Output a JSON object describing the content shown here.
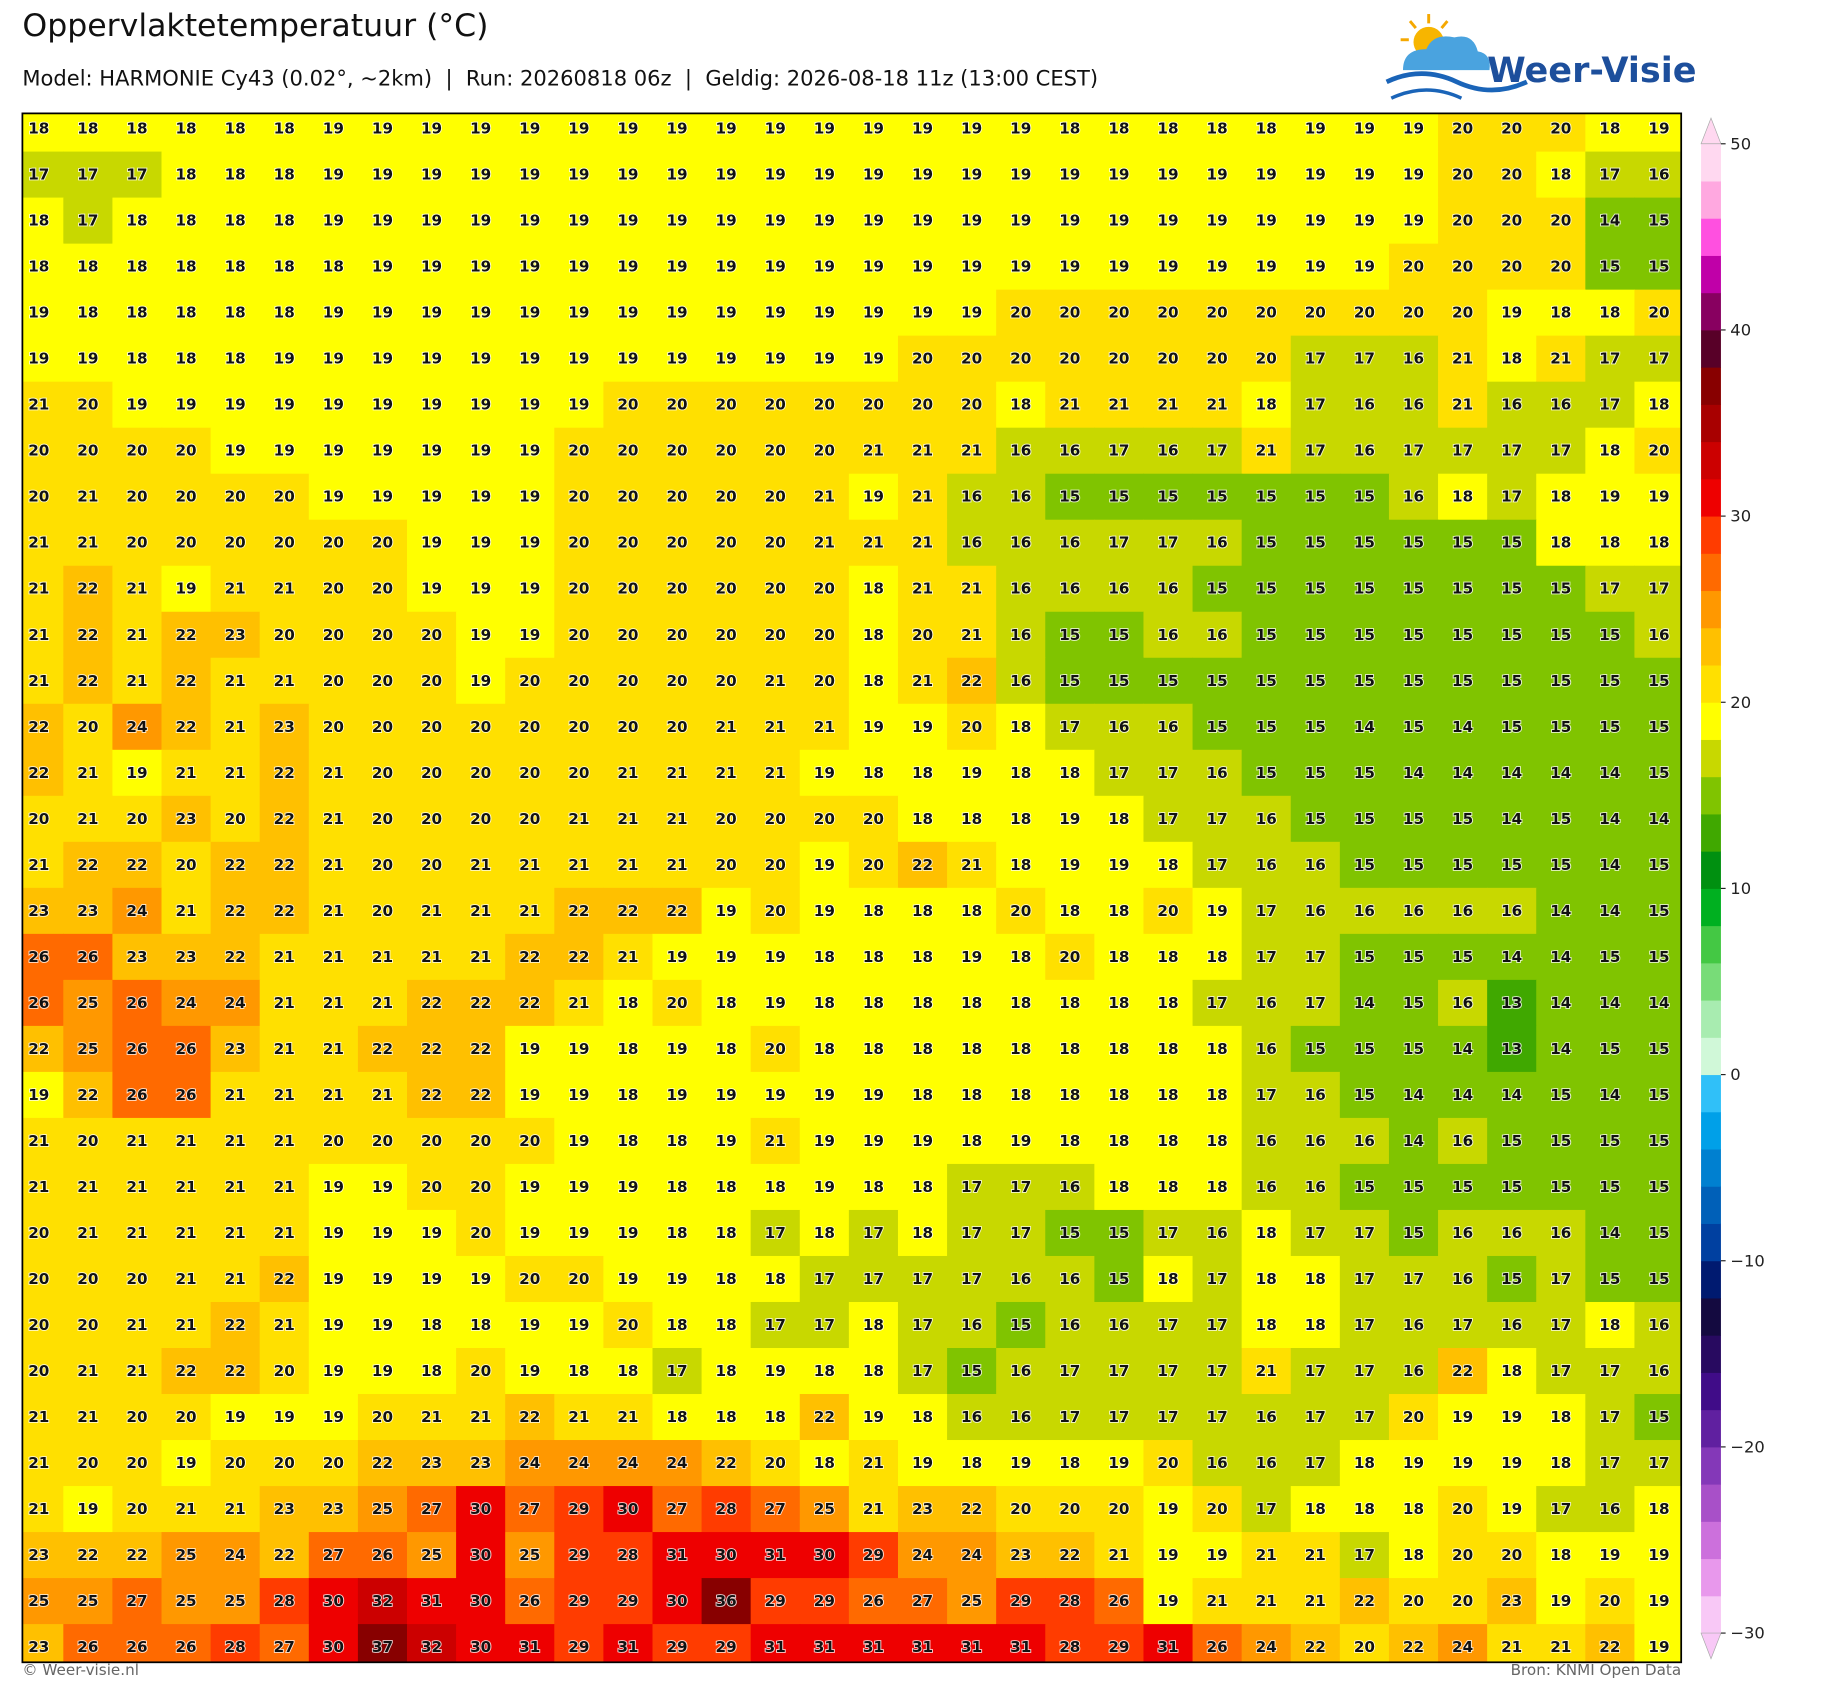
{
  "header": {
    "title": "Oppervlaktetemperatuur (°C)",
    "subtitle": "Model: HARMONIE Cy43 (0.02°, ~2km)  |  Run: 20260818 06z  |  Geldig: 2026-08-18 11z (13:00 CEST)"
  },
  "logo": {
    "text": "Weer-Visie"
  },
  "map": {
    "grid": [
      [
        18,
        18,
        18,
        18,
        18,
        18,
        19,
        19,
        19,
        19,
        19,
        19,
        19,
        19,
        19,
        19,
        19,
        19,
        19,
        19,
        19,
        18,
        18,
        18,
        18,
        18,
        19,
        19,
        19,
        20,
        20,
        20,
        18,
        19
      ],
      [
        17,
        17,
        17,
        18,
        18,
        18,
        19,
        19,
        19,
        19,
        19,
        19,
        19,
        19,
        19,
        19,
        19,
        19,
        19,
        19,
        19,
        19,
        19,
        19,
        19,
        19,
        19,
        19,
        19,
        20,
        20,
        18,
        17,
        16
      ],
      [
        18,
        17,
        18,
        18,
        18,
        18,
        19,
        19,
        19,
        19,
        19,
        19,
        19,
        19,
        19,
        19,
        19,
        19,
        19,
        19,
        19,
        19,
        19,
        19,
        19,
        19,
        19,
        19,
        19,
        20,
        20,
        20,
        14,
        15
      ],
      [
        18,
        18,
        18,
        18,
        18,
        18,
        18,
        19,
        19,
        19,
        19,
        19,
        19,
        19,
        19,
        19,
        19,
        19,
        19,
        19,
        19,
        19,
        19,
        19,
        19,
        19,
        19,
        19,
        20,
        20,
        20,
        20,
        15,
        15
      ],
      [
        19,
        18,
        18,
        18,
        18,
        18,
        19,
        19,
        19,
        19,
        19,
        19,
        19,
        19,
        19,
        19,
        19,
        19,
        19,
        19,
        20,
        20,
        20,
        20,
        20,
        20,
        20,
        20,
        20,
        20,
        19,
        18,
        18,
        20
      ],
      [
        19,
        19,
        18,
        18,
        18,
        19,
        19,
        19,
        19,
        19,
        19,
        19,
        19,
        19,
        19,
        19,
        19,
        19,
        20,
        20,
        20,
        20,
        20,
        20,
        20,
        20,
        17,
        17,
        16,
        21,
        18,
        21,
        17,
        17
      ],
      [
        21,
        20,
        19,
        19,
        19,
        19,
        19,
        19,
        19,
        19,
        19,
        19,
        20,
        20,
        20,
        20,
        20,
        20,
        20,
        20,
        18,
        21,
        21,
        21,
        21,
        18,
        17,
        16,
        16,
        21,
        16,
        16,
        17,
        18
      ],
      [
        20,
        20,
        20,
        20,
        19,
        19,
        19,
        19,
        19,
        19,
        19,
        20,
        20,
        20,
        20,
        20,
        20,
        21,
        21,
        21,
        16,
        16,
        17,
        16,
        17,
        21,
        17,
        16,
        17,
        17,
        17,
        17,
        18,
        20
      ],
      [
        20,
        21,
        20,
        20,
        20,
        20,
        19,
        19,
        19,
        19,
        19,
        20,
        20,
        20,
        20,
        20,
        21,
        19,
        21,
        16,
        16,
        15,
        15,
        15,
        15,
        15,
        15,
        15,
        16,
        18,
        17,
        18,
        19,
        19
      ],
      [
        21,
        21,
        20,
        20,
        20,
        20,
        20,
        20,
        19,
        19,
        19,
        20,
        20,
        20,
        20,
        20,
        21,
        21,
        21,
        16,
        16,
        16,
        17,
        17,
        16,
        15,
        15,
        15,
        15,
        15,
        15,
        18,
        18,
        18
      ],
      [
        21,
        22,
        21,
        19,
        21,
        21,
        20,
        20,
        19,
        19,
        19,
        20,
        20,
        20,
        20,
        20,
        20,
        18,
        21,
        21,
        16,
        16,
        16,
        16,
        15,
        15,
        15,
        15,
        15,
        15,
        15,
        15,
        17,
        17
      ],
      [
        21,
        22,
        21,
        22,
        23,
        20,
        20,
        20,
        20,
        19,
        19,
        20,
        20,
        20,
        20,
        20,
        20,
        18,
        20,
        21,
        16,
        15,
        15,
        16,
        16,
        15,
        15,
        15,
        15,
        15,
        15,
        15,
        15,
        16
      ],
      [
        21,
        22,
        21,
        22,
        21,
        21,
        20,
        20,
        20,
        19,
        20,
        20,
        20,
        20,
        20,
        21,
        20,
        18,
        21,
        22,
        16,
        15,
        15,
        15,
        15,
        15,
        15,
        15,
        15,
        15,
        15,
        15,
        15,
        15
      ],
      [
        22,
        20,
        24,
        22,
        21,
        23,
        20,
        20,
        20,
        20,
        20,
        20,
        20,
        20,
        21,
        21,
        21,
        19,
        19,
        20,
        18,
        17,
        16,
        16,
        15,
        15,
        15,
        14,
        15,
        14,
        15,
        15,
        15,
        15
      ],
      [
        22,
        21,
        19,
        21,
        21,
        22,
        21,
        20,
        20,
        20,
        20,
        20,
        21,
        21,
        21,
        21,
        19,
        18,
        18,
        19,
        18,
        18,
        17,
        17,
        16,
        15,
        15,
        15,
        14,
        14,
        14,
        14,
        14,
        15
      ],
      [
        20,
        21,
        20,
        23,
        20,
        22,
        21,
        20,
        20,
        20,
        20,
        21,
        21,
        21,
        20,
        20,
        20,
        20,
        18,
        18,
        18,
        19,
        18,
        17,
        17,
        16,
        15,
        15,
        15,
        15,
        14,
        15,
        14,
        14
      ],
      [
        21,
        22,
        22,
        20,
        22,
        22,
        21,
        20,
        20,
        21,
        21,
        21,
        21,
        21,
        20,
        20,
        19,
        20,
        22,
        21,
        18,
        19,
        19,
        18,
        17,
        16,
        16,
        15,
        15,
        15,
        15,
        15,
        14,
        15
      ],
      [
        23,
        23,
        24,
        21,
        22,
        22,
        21,
        20,
        21,
        21,
        21,
        22,
        22,
        22,
        19,
        20,
        19,
        18,
        18,
        18,
        20,
        18,
        18,
        20,
        19,
        17,
        16,
        16,
        16,
        16,
        16,
        14,
        14,
        15
      ],
      [
        26,
        26,
        23,
        23,
        22,
        21,
        21,
        21,
        21,
        21,
        22,
        22,
        21,
        19,
        19,
        19,
        18,
        18,
        18,
        19,
        18,
        20,
        18,
        18,
        18,
        17,
        17,
        15,
        15,
        15,
        14,
        14,
        15,
        15
      ],
      [
        26,
        25,
        26,
        24,
        24,
        21,
        21,
        21,
        22,
        22,
        22,
        21,
        18,
        20,
        18,
        19,
        18,
        18,
        18,
        18,
        18,
        18,
        18,
        18,
        17,
        16,
        17,
        14,
        15,
        16,
        13,
        14,
        14,
        14
      ],
      [
        22,
        25,
        26,
        26,
        23,
        21,
        21,
        22,
        22,
        22,
        19,
        19,
        18,
        19,
        18,
        20,
        18,
        18,
        18,
        18,
        18,
        18,
        18,
        18,
        18,
        16,
        15,
        15,
        15,
        14,
        13,
        14,
        15,
        15
      ],
      [
        19,
        22,
        26,
        26,
        21,
        21,
        21,
        21,
        22,
        22,
        19,
        19,
        18,
        19,
        19,
        19,
        19,
        19,
        18,
        18,
        18,
        18,
        18,
        18,
        18,
        17,
        16,
        15,
        14,
        14,
        14,
        15,
        14,
        15
      ],
      [
        21,
        20,
        21,
        21,
        21,
        21,
        20,
        20,
        20,
        20,
        20,
        19,
        18,
        18,
        19,
        21,
        19,
        19,
        19,
        18,
        19,
        18,
        18,
        18,
        18,
        16,
        16,
        16,
        14,
        16,
        15,
        15,
        15,
        15
      ],
      [
        21,
        21,
        21,
        21,
        21,
        21,
        19,
        19,
        20,
        20,
        19,
        19,
        19,
        18,
        18,
        18,
        19,
        18,
        18,
        17,
        17,
        16,
        18,
        18,
        18,
        16,
        16,
        15,
        15,
        15,
        15,
        15,
        15,
        15
      ],
      [
        20,
        21,
        21,
        21,
        21,
        21,
        19,
        19,
        19,
        20,
        19,
        19,
        19,
        18,
        18,
        17,
        18,
        17,
        18,
        17,
        17,
        15,
        15,
        17,
        16,
        18,
        17,
        17,
        15,
        16,
        16,
        16,
        14,
        15
      ],
      [
        20,
        20,
        20,
        21,
        21,
        22,
        19,
        19,
        19,
        19,
        20,
        20,
        19,
        19,
        18,
        18,
        17,
        17,
        17,
        17,
        16,
        16,
        15,
        18,
        17,
        18,
        18,
        17,
        17,
        16,
        15,
        17,
        15,
        15
      ],
      [
        20,
        20,
        21,
        21,
        22,
        21,
        19,
        19,
        18,
        18,
        19,
        19,
        20,
        18,
        18,
        17,
        17,
        18,
        17,
        16,
        15,
        16,
        16,
        17,
        17,
        18,
        18,
        17,
        16,
        17,
        16,
        17,
        18,
        16
      ],
      [
        20,
        21,
        21,
        22,
        22,
        20,
        19,
        19,
        18,
        20,
        19,
        18,
        18,
        17,
        18,
        19,
        18,
        18,
        17,
        15,
        16,
        17,
        17,
        17,
        17,
        21,
        17,
        17,
        16,
        22,
        18,
        17,
        17,
        16
      ],
      [
        21,
        21,
        20,
        20,
        19,
        19,
        19,
        20,
        21,
        21,
        22,
        21,
        21,
        18,
        18,
        18,
        22,
        19,
        18,
        16,
        16,
        17,
        17,
        17,
        17,
        16,
        17,
        17,
        20,
        19,
        19,
        18,
        17,
        15
      ],
      [
        21,
        20,
        20,
        19,
        20,
        20,
        20,
        22,
        23,
        23,
        24,
        24,
        24,
        24,
        22,
        20,
        18,
        21,
        19,
        18,
        19,
        18,
        19,
        20,
        16,
        16,
        17,
        18,
        19,
        19,
        19,
        18,
        17,
        17
      ],
      [
        21,
        19,
        20,
        21,
        21,
        23,
        23,
        25,
        27,
        30,
        27,
        29,
        30,
        27,
        28,
        27,
        25,
        21,
        23,
        22,
        20,
        20,
        20,
        19,
        20,
        17,
        18,
        18,
        18,
        20,
        19,
        17,
        16,
        18
      ],
      [
        23,
        22,
        22,
        25,
        24,
        22,
        27,
        26,
        25,
        30,
        25,
        29,
        28,
        31,
        30,
        31,
        30,
        29,
        24,
        24,
        23,
        22,
        21,
        19,
        19,
        21,
        21,
        17,
        18,
        20,
        20,
        18,
        19,
        19
      ],
      [
        25,
        25,
        27,
        25,
        25,
        28,
        30,
        32,
        31,
        30,
        26,
        29,
        29,
        30,
        36,
        29,
        29,
        26,
        27,
        25,
        29,
        28,
        26,
        19,
        21,
        21,
        21,
        22,
        20,
        20,
        23,
        19,
        20,
        19
      ],
      [
        23,
        26,
        26,
        26,
        28,
        27,
        30,
        37,
        32,
        30,
        31,
        29,
        31,
        29,
        29,
        31,
        31,
        31,
        31,
        31,
        31,
        28,
        29,
        31,
        26,
        24,
        22,
        20,
        22,
        24,
        21,
        21,
        22,
        19
      ]
    ],
    "colorbar": {
      "lim": [
        -30,
        50
      ],
      "ticks": [
        50,
        40,
        30,
        20,
        10,
        0,
        {
          "value": -10,
          "label": "−10"
        },
        {
          "value": -20,
          "label": "−20"
        },
        {
          "value": -30,
          "label": "−30"
        }
      ],
      "colors": [
        "#f8c8f6",
        "#e898ec",
        "#cc70dc",
        "#a850c8",
        "#8438b8",
        "#6020a0",
        "#400c88",
        "#280a60",
        "#140a40",
        "#001a70",
        "#0040a0",
        "#0060b8",
        "#0080d0",
        "#00a0e8",
        "#30c0f8",
        "#d0f8d8",
        "#a8ecb0",
        "#78dc78",
        "#44c844",
        "#00b020",
        "#009010",
        "#40a800",
        "#80c400",
        "#c8d800",
        "#ffff00",
        "#ffe000",
        "#ffc000",
        "#ff9800",
        "#ff6a00",
        "#ff3c00",
        "#ee0000",
        "#cc0000",
        "#a80000",
        "#880000",
        "#580028",
        "#880060",
        "#c000a8",
        "#ff50e0",
        "#ffa8e0",
        "#ffd8f0"
      ]
    }
  },
  "footer": {
    "left": "© Weer-visie.nl",
    "right": "Bron: KNMI Open Data"
  }
}
